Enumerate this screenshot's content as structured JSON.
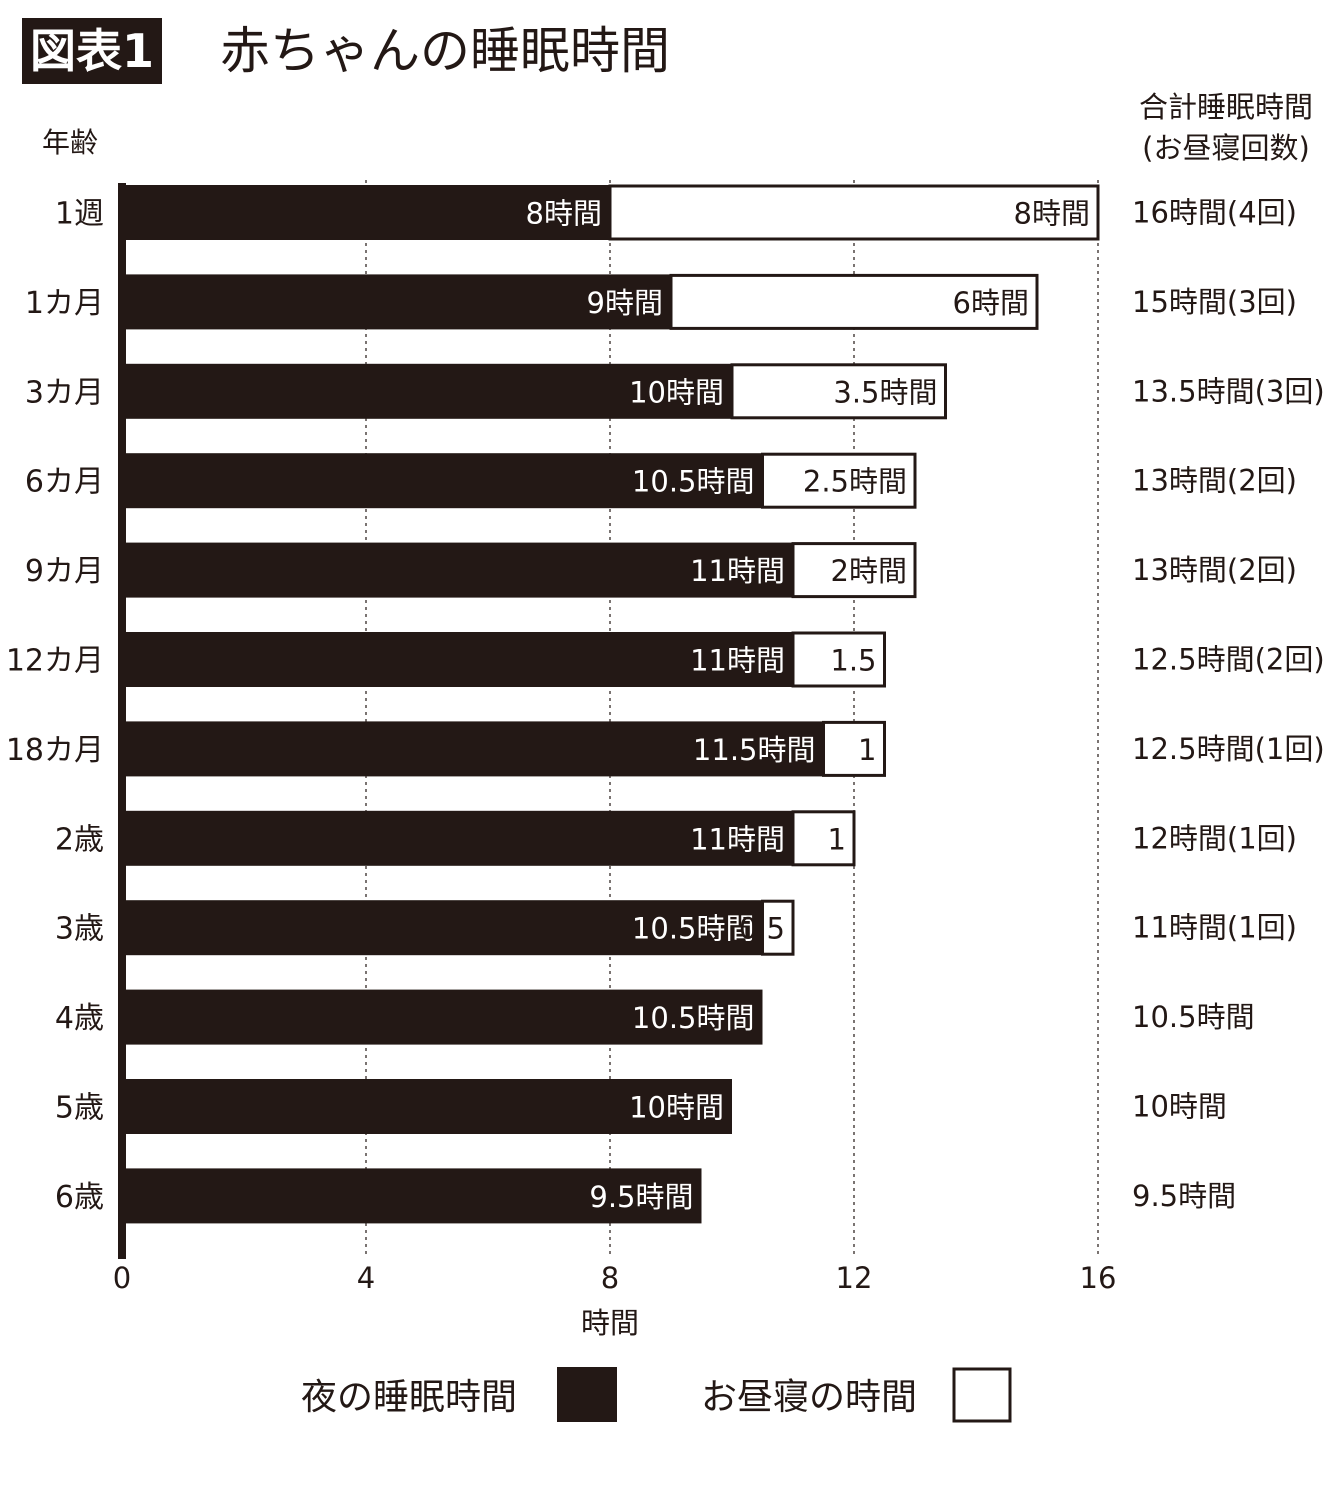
{
  "header": {
    "badge": "図表1",
    "title": "赤ちゃんの睡眠時間"
  },
  "chart_data": {
    "type": "bar",
    "orientation": "horizontal",
    "stacked": true,
    "title": "赤ちゃんの睡眠時間",
    "ylabel": "年齢",
    "xlabel": "時間",
    "right_header": [
      "合計睡眠時間",
      "(お昼寝回数)"
    ],
    "xlim": [
      0,
      16
    ],
    "xticks": [
      0,
      4,
      8,
      12,
      16
    ],
    "grid": "dashed vertical at 4, 8, 12, 16",
    "legend_position": "bottom",
    "categories": [
      "1週",
      "1カ月",
      "3カ月",
      "6カ月",
      "9カ月",
      "12カ月",
      "18カ月",
      "2歳",
      "3歳",
      "4歳",
      "5歳",
      "6歳"
    ],
    "series": [
      {
        "name": "夜の睡眠時間",
        "color": "#231815",
        "values": [
          8,
          9,
          10,
          10.5,
          11,
          11,
          11.5,
          11,
          10.5,
          10.5,
          10,
          9.5
        ],
        "labels": [
          "8時間",
          "9時間",
          "10時間",
          "10.5時間",
          "11時間",
          "11時間",
          "11.5時間",
          "11時間",
          "10.5時間",
          "10.5時間",
          "10時間",
          "9.5時間"
        ]
      },
      {
        "name": "お昼寝の時間",
        "color": "#ffffff",
        "values": [
          8,
          6,
          3.5,
          2.5,
          2,
          1.5,
          1,
          1,
          0.5,
          0,
          0,
          0
        ],
        "labels": [
          "8時間",
          "6時間",
          "3.5時間",
          "2.5時間",
          "2時間",
          "1.5",
          "1",
          "1",
          "0.5",
          "",
          "",
          ""
        ]
      }
    ],
    "totals": [
      "16時間(4回)",
      "15時間(3回)",
      "13.5時間(3回)",
      "13時間(2回)",
      "13時間(2回)",
      "12.5時間(2回)",
      "12.5時間(1回)",
      "12時間(1回)",
      "11時間(1回)",
      "10.5時間",
      "10時間",
      "9.5時間"
    ]
  }
}
